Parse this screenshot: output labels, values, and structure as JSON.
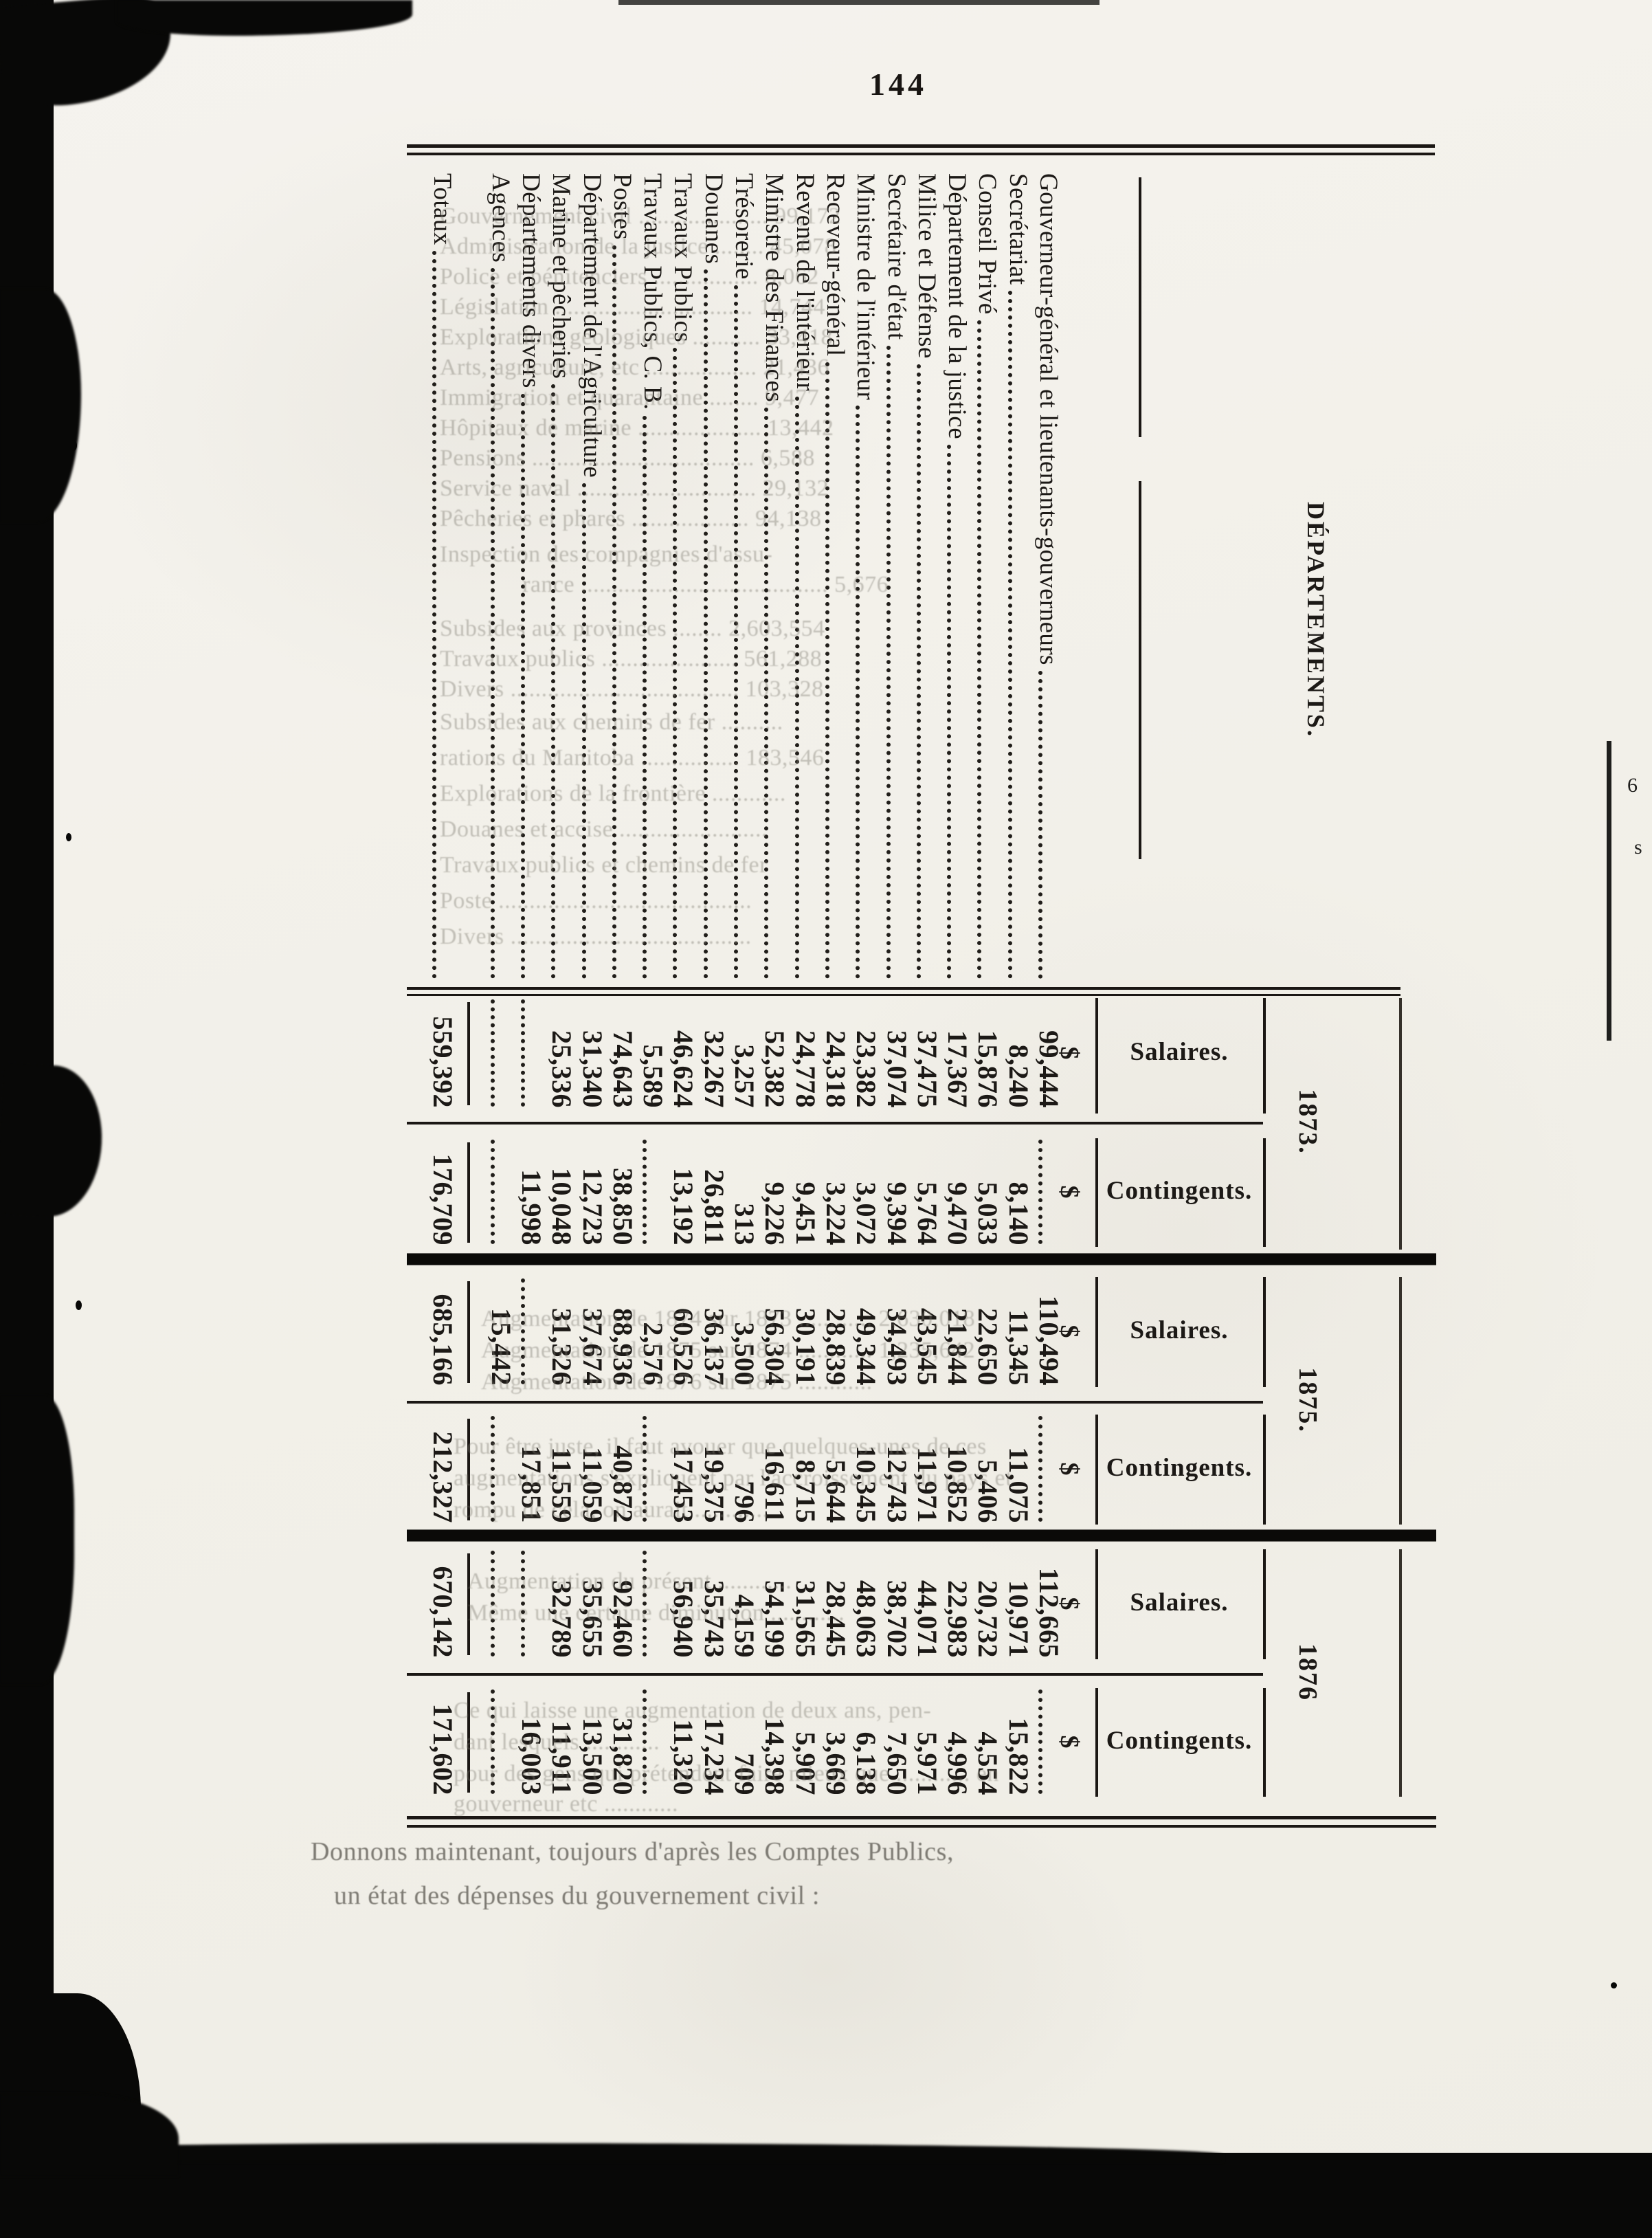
{
  "page": {
    "number": "144"
  },
  "table": {
    "header": "DÉPARTEMENTS.",
    "currency_symbol": "$",
    "year_groups": [
      {
        "year": "1873.",
        "columns": [
          "Salaires.",
          "Contingents."
        ]
      },
      {
        "year": "1875.",
        "columns": [
          "Salaires.",
          "Contingents."
        ]
      },
      {
        "year": "1876",
        "columns": [
          "Salaires.",
          "Contingents."
        ]
      }
    ],
    "rows": [
      {
        "name": "Gouverneur-général et lieutenants-gouverneurs",
        "values": [
          "99,444",
          "",
          "110,494",
          "",
          "112,665",
          ""
        ]
      },
      {
        "name": "Secrétariat",
        "values": [
          "8,240",
          "8,140",
          "11,345",
          "11,075",
          "10,971",
          "15,822"
        ]
      },
      {
        "name": "Conseil Privé",
        "values": [
          "15,876",
          "5,033",
          "22,650",
          "5,406",
          "20,732",
          "4,554"
        ]
      },
      {
        "name": "Département de la justice",
        "values": [
          "17,367",
          "9,470",
          "21,844",
          "10,852",
          "22,983",
          "4,996"
        ]
      },
      {
        "name": "Milice et Défense",
        "values": [
          "37,475",
          "5,764",
          "43,545",
          "11,971",
          "44,071",
          "5,971"
        ]
      },
      {
        "name": "Secrétaire d'état",
        "values": [
          "37,074",
          "9,394",
          "34,493",
          "12,743",
          "38,702",
          "7,650"
        ]
      },
      {
        "name": "Ministre de l'intérieur",
        "values": [
          "23,382",
          "3,072",
          "49,344",
          "10,345",
          "48,063",
          "6,138"
        ]
      },
      {
        "name": "Receveur-général",
        "values": [
          "24,318",
          "3,224",
          "28,839",
          "5,644",
          "28,445",
          "3,669"
        ]
      },
      {
        "name": "Revenu de l'intérieur",
        "values": [
          "24,778",
          "9,451",
          "30,191",
          "8,715",
          "31,565",
          "5,907"
        ]
      },
      {
        "name": "Ministre des Finances",
        "values": [
          "52,382",
          "9,226",
          "56,304",
          "16,611",
          "54,199",
          "14,398"
        ]
      },
      {
        "name": "Trésorerie",
        "values": [
          "3,257",
          "313",
          "3,500",
          "796",
          "4,159",
          "709"
        ]
      },
      {
        "name": "Douanes",
        "values": [
          "32,267",
          "26,811",
          "36,137",
          "19,375",
          "35,743",
          "17,234"
        ]
      },
      {
        "name": "Travaux Publics",
        "values": [
          "46,624",
          "13,192",
          "60,526",
          "17,453",
          "56,940",
          "11,320"
        ]
      },
      {
        "name": "Travaux Publics, C. B.",
        "values": [
          "5,589",
          "",
          "2,576",
          "",
          "",
          ""
        ]
      },
      {
        "name": "Postes",
        "values": [
          "74,643",
          "38,850",
          "88,936",
          "40,872",
          "92,460",
          "31,820"
        ]
      },
      {
        "name": "Département de l'Agriculture",
        "values": [
          "31,340",
          "12,723",
          "37,674",
          "11,059",
          "35,655",
          "13,500"
        ]
      },
      {
        "name": "Marine et pêcheries",
        "values": [
          "25,336",
          "10,048",
          "31,326",
          "11,559",
          "32,789",
          "11,911"
        ]
      },
      {
        "name": "Départements divers",
        "values": [
          "",
          "11,998",
          "",
          "17,851",
          "",
          "16,003"
        ]
      },
      {
        "name": "Agences",
        "values": [
          "",
          "",
          "15,442",
          "",
          "",
          ""
        ]
      },
      {
        "name": "Totaux",
        "total": true,
        "values": [
          "559,392",
          "176,709",
          "685,166",
          "212,327",
          "670,142",
          "171,602"
        ]
      }
    ]
  },
  "footer": {
    "line1": "Donnons maintenant, toujours d'après les Comptes Publics,",
    "line2": "un état des dépenses du gouvernement civil :"
  },
  "show_through": {
    "upper": [
      "Gouvernement civil ..................... 99,172",
      "Administration de la justice ........ 45,078",
      "Police et pénitenciers ................. 8,062",
      "Législation ................................ 14,744",
      "Explorations géologiques ........... 33,418",
      "Arts, agriculture, etc .................. 21,436",
      "Immigration et quarantaine ........ 9,477",
      "Hôpitaux de marine .................... 13,442",
      "Pensions .................................... 6,588",
      "Service naval ............................. 29,132",
      "Pêcheries et phares ................... 94,138",
      "Inspection des compagnies d'assu-",
      "rance ........................................ 5,676",
      "Subsides aux provinces ........ 2,603,554",
      "Travaux publics ...................... 561,288",
      "Divers ..................................... 103,328",
      "Subsides aux chemins de fer ..........",
      "rations du Manitoba ................ 183,546",
      "Explorations de la frontière ............",
      "Douanes et accise ........................",
      "Travaux publics et chemins de fer",
      "Poste .........................................",
      "Divers ......................................."
    ],
    "middle": [
      "Augmentation de 1874 sur 1873 ............ 2,630,018",
      "Augmentation de 1875 sur 1874 ............ 1,235,642",
      "Augmentation de 1876 sur 1875 ............",
      "Pour être juste, il faut avouer que quelques-unes de ces",
      "augmentations s'expliquent par l'accroissement du pays et",
      "rompu de cela, on aurait ............"
    ],
    "lower": [
      "Augmentation du présent ............",
      "Même une certaine diminution ............",
      "Ce qui laisse une augmentation de deux ans, pen-",
      "dant lesquels ............",
      "pour des gens qui prétendent faire mieux que ............ en",
      "gouverneur etc ............"
    ]
  }
}
